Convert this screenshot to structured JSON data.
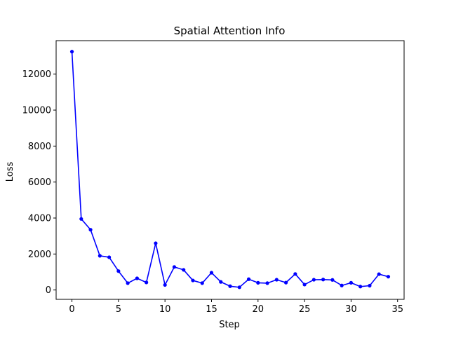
{
  "chart_data": {
    "type": "line",
    "title": "Spatial Attention Info",
    "xlabel": "Step",
    "ylabel": "Loss",
    "xlim": [
      -1.7,
      35.7
    ],
    "ylim": [
      -520,
      13860
    ],
    "xticks": [
      0,
      5,
      10,
      15,
      20,
      25,
      30,
      35
    ],
    "yticks": [
      0,
      2000,
      4000,
      6000,
      8000,
      10000,
      12000
    ],
    "grid": false,
    "legend": "none",
    "series": [
      {
        "color": "#0000ff",
        "marker": "circle",
        "x": [
          0,
          1,
          2,
          3,
          4,
          5,
          6,
          7,
          8,
          9,
          10,
          11,
          12,
          13,
          14,
          15,
          16,
          17,
          18,
          19,
          20,
          21,
          22,
          23,
          24,
          25,
          26,
          27,
          28,
          29,
          30,
          31,
          32,
          33,
          34
        ],
        "values": [
          13250,
          3950,
          3350,
          1900,
          1820,
          1050,
          380,
          650,
          420,
          2600,
          280,
          1280,
          1120,
          530,
          380,
          960,
          450,
          210,
          150,
          600,
          400,
          380,
          570,
          410,
          890,
          300,
          570,
          580,
          560,
          250,
          400,
          190,
          240,
          880,
          740
        ]
      }
    ]
  }
}
